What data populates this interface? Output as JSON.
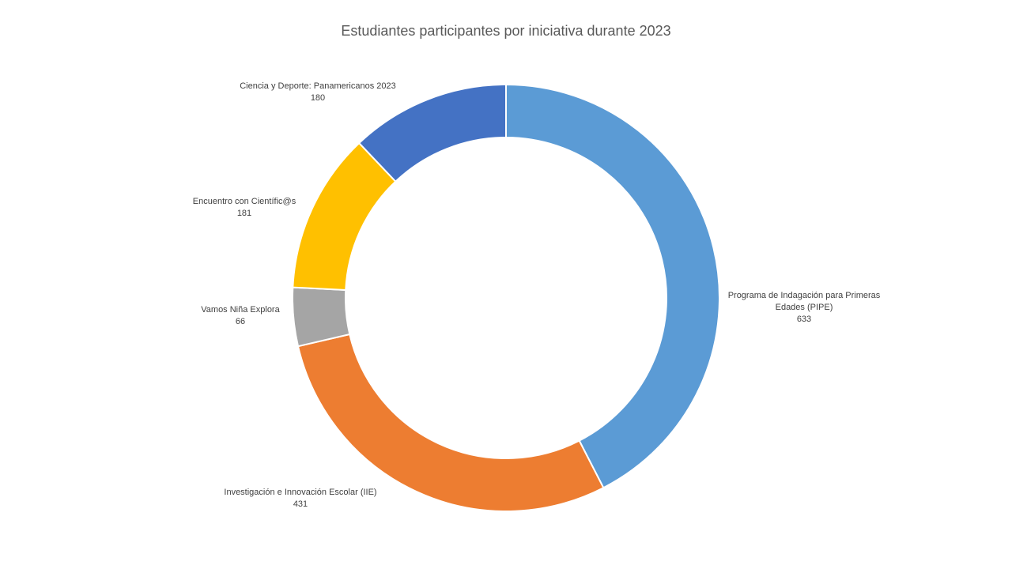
{
  "chart_data": {
    "type": "pie",
    "variant": "doughnut",
    "title": "Estudiantes participantes por iniciativa durante 2023",
    "legend": "none",
    "slices": [
      {
        "label_lines": [
          "Programa de Indagación para Primeras",
          "Edades (PIPE)"
        ],
        "value": 633,
        "color": "#5B9BD5"
      },
      {
        "label_lines": [
          "Investigación e Innovación Escolar (IIE)"
        ],
        "value": 431,
        "color": "#ED7D31"
      },
      {
        "label_lines": [
          "Vamos Niña Explora"
        ],
        "value": 66,
        "color": "#A5A5A5"
      },
      {
        "label_lines": [
          "Encuentro con Científic@s"
        ],
        "value": 181,
        "color": "#FFC000"
      },
      {
        "label_lines": [
          "Ciencia y Deporte: Panamericanos 2023"
        ],
        "value": 180,
        "color": "#4472C4"
      }
    ]
  }
}
